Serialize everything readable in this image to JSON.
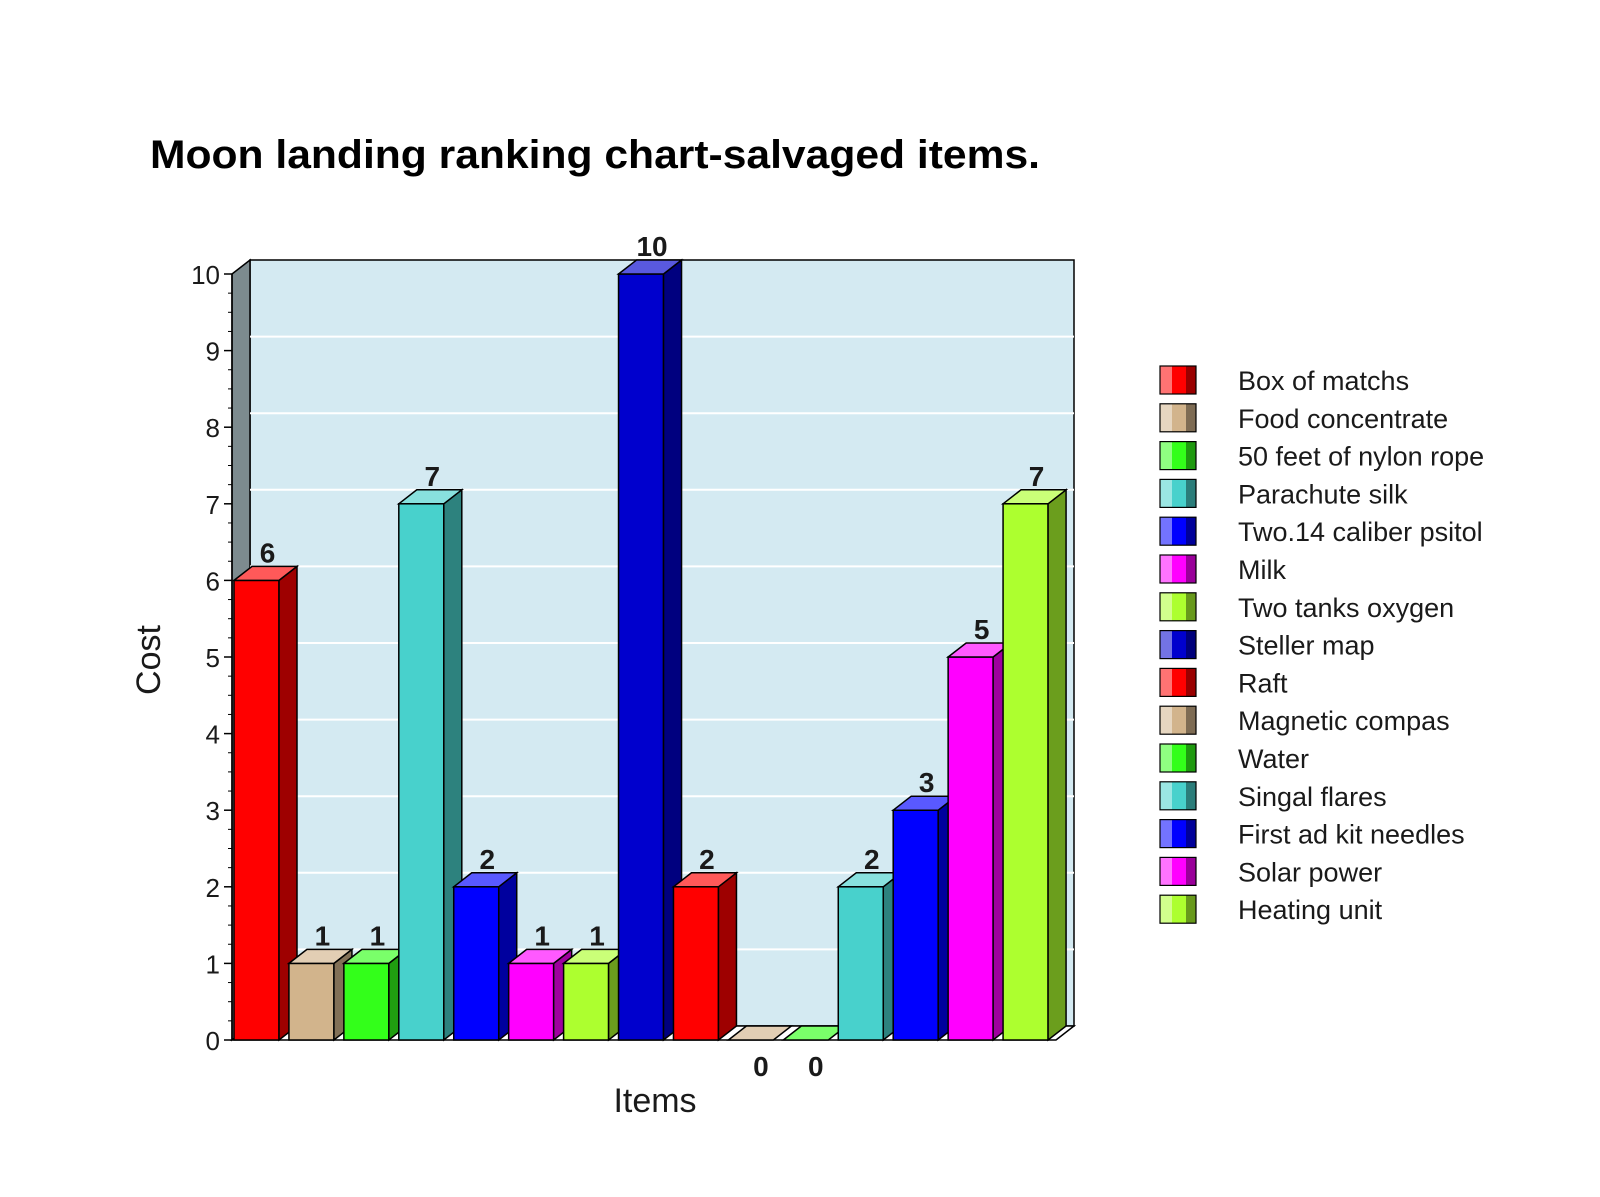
{
  "colors": {
    "background": "#ffffff",
    "plot_background": "#d4eaf2",
    "gridline": "#ffffff",
    "left_wall": "#7d8b8f",
    "floor": "#ffffff",
    "text": "#1a1a1a"
  },
  "chart_data": {
    "type": "bar",
    "title": "Moon landing ranking chart-salvaged items.",
    "xlabel": "Items",
    "ylabel": "Cost",
    "ylim": [
      0,
      10
    ],
    "y_ticks": [
      "0",
      "1",
      "2",
      "3",
      "4",
      "5",
      "6",
      "7",
      "8",
      "9",
      "10"
    ],
    "grid": true,
    "legend_position": "right",
    "three_d": true,
    "series": [
      {
        "name": "Box of matchs",
        "value": 6,
        "label": "6",
        "color": "#ff0000"
      },
      {
        "name": "Food concentrate",
        "value": 1,
        "label": "1",
        "color": "#d2b48c"
      },
      {
        "name": "50 feet of nylon rope",
        "value": 1,
        "label": "1",
        "color": "#33ff1a"
      },
      {
        "name": "Parachute silk",
        "value": 7,
        "label": "7",
        "color": "#48d1cc"
      },
      {
        "name": "Two.14 caliber psitol",
        "value": 2,
        "label": "2",
        "color": "#0000ff"
      },
      {
        "name": "Milk",
        "value": 1,
        "label": "1",
        "color": "#ff00ff"
      },
      {
        "name": "Two tanks  oxygen",
        "value": 1,
        "label": "1",
        "color": "#adff2f"
      },
      {
        "name": "Steller map",
        "value": 10,
        "label": "10",
        "color": "#0000cd"
      },
      {
        "name": "Raft",
        "value": 2,
        "label": "2",
        "color": "#ff0000"
      },
      {
        "name": "Magnetic compas",
        "value": 0,
        "label": "0",
        "color": "#d2b48c"
      },
      {
        "name": "Water",
        "value": 0,
        "label": "0",
        "color": "#33ff1a"
      },
      {
        "name": "Singal flares",
        "value": 2,
        "label": "2",
        "color": "#48d1cc"
      },
      {
        "name": "First ad kit needles",
        "value": 3,
        "label": "3",
        "color": "#0000ff"
      },
      {
        "name": "Solar power",
        "value": 5,
        "label": "5",
        "color": "#ff00ff"
      },
      {
        "name": "Heating unit",
        "value": 7,
        "label": "7",
        "color": "#adff2f"
      }
    ]
  }
}
